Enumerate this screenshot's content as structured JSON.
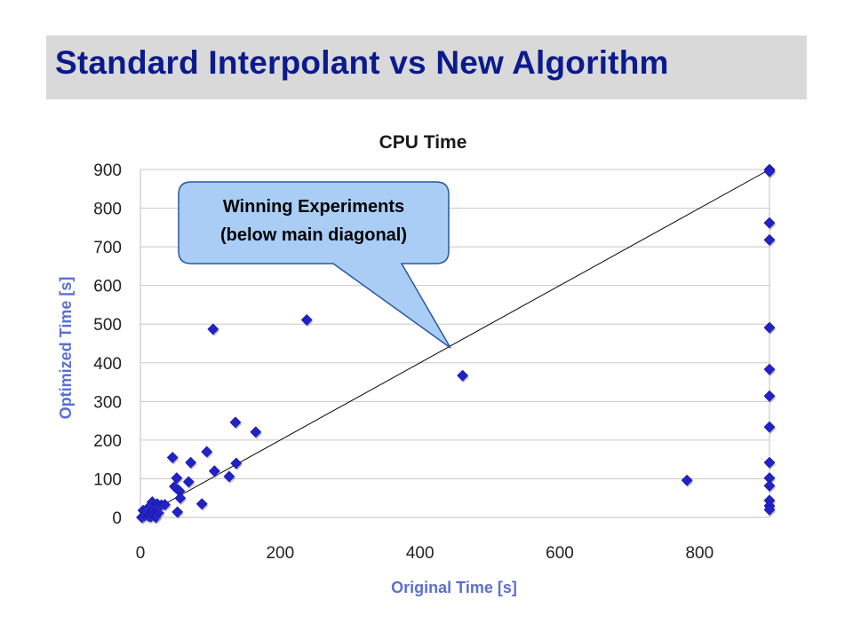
{
  "slide": {
    "title": "Standard Interpolant vs New Algorithm"
  },
  "callout": {
    "line1": "Winning Experiments",
    "line2": "(below main diagonal)",
    "fill": "#a9cdf5",
    "stroke": "#2b56a0"
  },
  "colors": {
    "title": "#0b1b8c",
    "title_band": "#d9d9d9",
    "marker": "#2222c8",
    "axis_title": "#5b6fd6"
  },
  "chart_data": {
    "type": "scatter",
    "title": "CPU Time",
    "xlabel": "Original Time [s]",
    "ylabel": "Optimized Time [s]",
    "xlim": [
      0,
      900
    ],
    "ylim": [
      0,
      900
    ],
    "x_ticks": [
      0,
      200,
      400,
      600,
      800
    ],
    "y_ticks": [
      0,
      100,
      200,
      300,
      400,
      500,
      600,
      700,
      800,
      900
    ],
    "grid": "horizontal",
    "reference_line": "y = x",
    "points": [
      [
        2,
        0
      ],
      [
        3,
        2
      ],
      [
        4,
        18
      ],
      [
        6,
        5
      ],
      [
        8,
        12
      ],
      [
        10,
        22
      ],
      [
        12,
        3
      ],
      [
        14,
        30
      ],
      [
        15,
        2
      ],
      [
        17,
        40
      ],
      [
        19,
        18
      ],
      [
        20,
        8
      ],
      [
        22,
        0
      ],
      [
        24,
        35
      ],
      [
        26,
        12
      ],
      [
        30,
        32
      ],
      [
        35,
        33
      ],
      [
        46,
        155
      ],
      [
        49,
        80
      ],
      [
        52,
        102
      ],
      [
        53,
        14
      ],
      [
        56,
        68
      ],
      [
        57,
        50
      ],
      [
        69,
        92
      ],
      [
        72,
        142
      ],
      [
        88,
        35
      ],
      [
        95,
        170
      ],
      [
        104,
        487
      ],
      [
        106,
        120
      ],
      [
        127,
        106
      ],
      [
        136,
        246
      ],
      [
        137,
        140
      ],
      [
        165,
        221
      ],
      [
        238,
        511
      ],
      [
        461,
        367
      ],
      [
        782,
        96
      ],
      [
        900,
        900
      ],
      [
        900,
        895
      ],
      [
        900,
        762
      ],
      [
        900,
        718
      ],
      [
        900,
        491
      ],
      [
        900,
        383
      ],
      [
        900,
        314
      ],
      [
        900,
        234
      ],
      [
        900,
        142
      ],
      [
        900,
        102
      ],
      [
        900,
        82
      ],
      [
        900,
        44
      ],
      [
        900,
        30
      ],
      [
        900,
        20
      ]
    ]
  }
}
